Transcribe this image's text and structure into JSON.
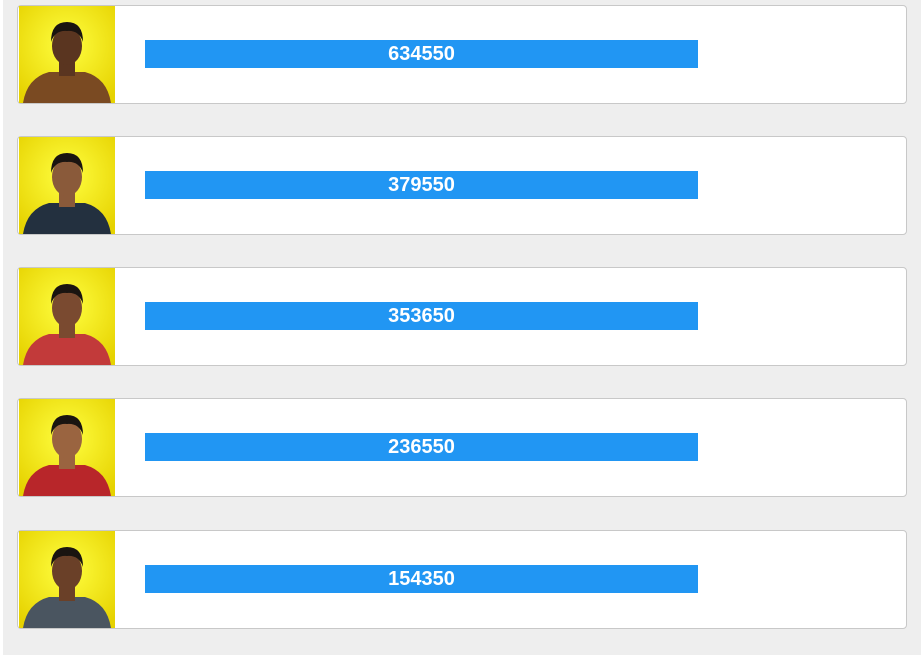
{
  "entries": [
    {
      "votes": 634550
    },
    {
      "votes": 379550
    },
    {
      "votes": 353650
    },
    {
      "votes": 236550
    },
    {
      "votes": 154350
    }
  ]
}
